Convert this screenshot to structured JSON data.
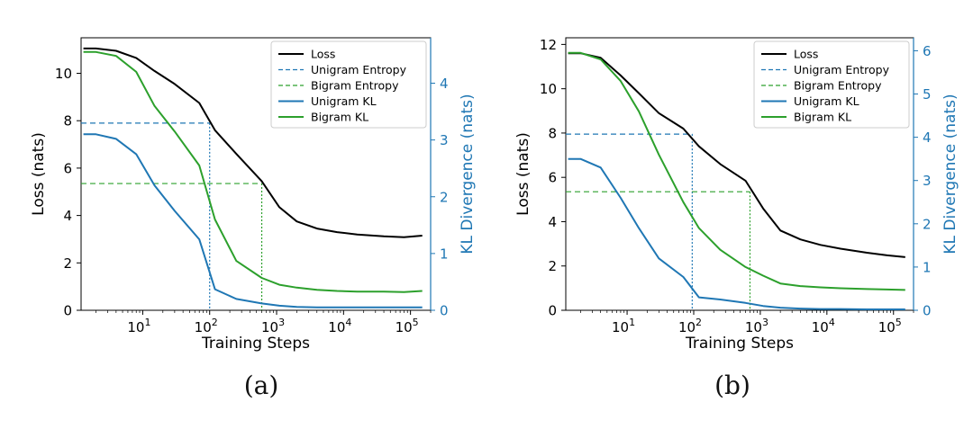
{
  "colors": {
    "loss": "#000000",
    "unigram": "#1f77b4",
    "bigram": "#2ca02c",
    "kl_axis": "#1f77b4"
  },
  "chart_data": [
    {
      "type": "line",
      "caption": "(a)",
      "xlabel": "Training Steps",
      "ylabel": "Loss (nats)",
      "y2label": "KL Divergence (nats)",
      "xscale": "log",
      "xlim": [
        1.2,
        200000
      ],
      "ylim": [
        0,
        11.5
      ],
      "y2lim": [
        0,
        4.8
      ],
      "yticks": [
        0,
        2,
        4,
        6,
        8,
        10
      ],
      "y2ticks": [
        0,
        1,
        2,
        3,
        4
      ],
      "xticks": [
        10,
        100,
        1000,
        10000,
        100000
      ],
      "xtick_labels": [
        "10",
        "10",
        "10",
        "10",
        "10"
      ],
      "xtick_exps": [
        "1",
        "2",
        "3",
        "4",
        "5"
      ],
      "legend": [
        "Loss",
        "Unigram Entropy",
        "Bigram Entropy",
        "Unigram KL",
        "Bigram KL"
      ],
      "legend_position": "top-right",
      "series": [
        {
          "name": "Loss",
          "axis": "left",
          "style": "solid",
          "color_key": "loss",
          "x": [
            1.3,
            2,
            4,
            8,
            15,
            30,
            70,
            120,
            250,
            600,
            1100,
            2000,
            4000,
            8000,
            16000,
            40000,
            80000,
            150000
          ],
          "y": [
            11.05,
            11.05,
            10.95,
            10.65,
            10.1,
            9.55,
            8.75,
            7.6,
            6.6,
            5.45,
            4.35,
            3.75,
            3.45,
            3.3,
            3.2,
            3.12,
            3.08,
            3.15
          ]
        },
        {
          "name": "Unigram KL",
          "axis": "right",
          "style": "solid",
          "color_key": "unigram",
          "x": [
            1.3,
            2,
            4,
            8,
            15,
            30,
            70,
            120,
            250,
            600,
            1100,
            2000,
            4000,
            8000,
            16000,
            40000,
            80000,
            150000
          ],
          "y": [
            3.1,
            3.1,
            3.02,
            2.75,
            2.2,
            1.75,
            1.25,
            0.37,
            0.2,
            0.12,
            0.08,
            0.06,
            0.05,
            0.05,
            0.05,
            0.05,
            0.05,
            0.05
          ]
        },
        {
          "name": "Bigram KL",
          "axis": "right",
          "style": "solid",
          "color_key": "bigram",
          "x": [
            1.3,
            2,
            4,
            8,
            15,
            30,
            70,
            120,
            250,
            600,
            1100,
            2000,
            4000,
            8000,
            16000,
            40000,
            80000,
            150000
          ],
          "y": [
            4.55,
            4.55,
            4.48,
            4.2,
            3.6,
            3.15,
            2.55,
            1.6,
            0.87,
            0.57,
            0.45,
            0.4,
            0.36,
            0.34,
            0.33,
            0.33,
            0.32,
            0.34
          ]
        }
      ],
      "references": [
        {
          "name": "Unigram Entropy",
          "color_key": "unigram",
          "y": 7.9,
          "x_end": 100
        },
        {
          "name": "Bigram Entropy",
          "color_key": "bigram",
          "y": 5.35,
          "x_end": 600
        }
      ]
    },
    {
      "type": "line",
      "caption": "(b)",
      "xlabel": "Training Steps",
      "ylabel": "Loss (nats)",
      "y2label": "KL Divergence (nats)",
      "xscale": "log",
      "xlim": [
        1.2,
        200000
      ],
      "ylim": [
        0,
        12.3
      ],
      "y2lim": [
        0,
        6.3
      ],
      "yticks": [
        0,
        2,
        4,
        6,
        8,
        10,
        12
      ],
      "y2ticks": [
        0,
        1,
        2,
        3,
        4,
        5,
        6
      ],
      "xticks": [
        10,
        100,
        1000,
        10000,
        100000
      ],
      "xtick_labels": [
        "10",
        "10",
        "10",
        "10",
        "10"
      ],
      "xtick_exps": [
        "1",
        "2",
        "3",
        "4",
        "5"
      ],
      "legend": [
        "Loss",
        "Unigram Entropy",
        "Bigram Entropy",
        "Unigram KL",
        "Bigram KL"
      ],
      "legend_position": "top-right",
      "series": [
        {
          "name": "Loss",
          "axis": "left",
          "style": "solid",
          "color_key": "loss",
          "x": [
            1.3,
            2,
            4,
            8,
            15,
            30,
            70,
            120,
            250,
            600,
            1100,
            2000,
            4000,
            8000,
            16000,
            40000,
            80000,
            150000
          ],
          "y": [
            11.6,
            11.6,
            11.4,
            10.6,
            9.8,
            8.9,
            8.2,
            7.4,
            6.6,
            5.85,
            4.6,
            3.6,
            3.2,
            2.95,
            2.78,
            2.6,
            2.48,
            2.4
          ]
        },
        {
          "name": "Unigram KL",
          "axis": "right",
          "style": "solid",
          "color_key": "unigram",
          "x": [
            1.3,
            2,
            4,
            8,
            15,
            30,
            70,
            120,
            250,
            600,
            1100,
            2000,
            4000,
            8000,
            16000,
            40000,
            80000,
            150000
          ],
          "y": [
            3.5,
            3.5,
            3.3,
            2.6,
            1.9,
            1.2,
            0.77,
            0.3,
            0.25,
            0.17,
            0.1,
            0.06,
            0.04,
            0.03,
            0.03,
            0.02,
            0.02,
            0.02
          ]
        },
        {
          "name": "Bigram KL",
          "axis": "right",
          "style": "solid",
          "color_key": "bigram",
          "x": [
            1.3,
            2,
            4,
            8,
            15,
            30,
            70,
            120,
            250,
            600,
            1100,
            2000,
            4000,
            8000,
            16000,
            40000,
            80000,
            150000
          ],
          "y": [
            5.95,
            5.95,
            5.8,
            5.3,
            4.6,
            3.6,
            2.5,
            1.9,
            1.4,
            1.0,
            0.8,
            0.62,
            0.56,
            0.53,
            0.51,
            0.49,
            0.48,
            0.47
          ]
        }
      ],
      "references": [
        {
          "name": "Unigram Entropy",
          "color_key": "unigram",
          "y": 7.95,
          "x_end": 95
        },
        {
          "name": "Bigram Entropy",
          "color_key": "bigram",
          "y": 5.35,
          "x_end": 700
        }
      ]
    }
  ]
}
